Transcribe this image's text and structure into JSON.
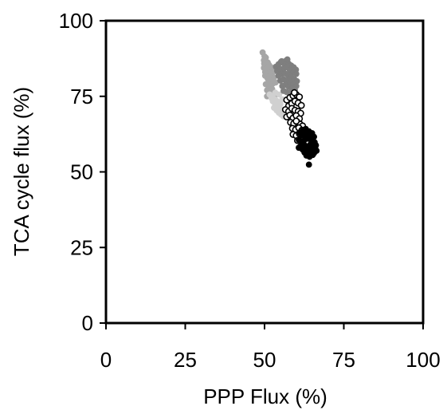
{
  "chart_data": {
    "type": "scatter",
    "title": "",
    "xlabel": "PPP Flux (%)",
    "ylabel": "TCA cycle flux (%)",
    "xlim": [
      0,
      100
    ],
    "ylim": [
      0,
      100
    ],
    "xticks": [
      0,
      25,
      50,
      75,
      100
    ],
    "yticks": [
      0,
      25,
      50,
      75,
      100
    ],
    "grid": false,
    "series": [
      {
        "color": "#a6a6a6",
        "stroke": "#a6a6a6",
        "x": [
          49.4,
          50.0,
          49.8,
          50.4,
          51.0,
          50.7,
          51.3,
          52.0,
          51.6,
          52.3,
          52.9,
          49.8,
          50.6,
          51.2,
          51.8,
          52.4,
          50.2,
          51.0,
          51.8,
          52.6,
          50.4,
          51.4,
          52.4,
          50.8,
          51.8,
          52.8,
          53.5,
          49.9,
          50.6,
          51.4,
          52.1,
          53.0,
          53.5,
          50.2,
          51.3,
          50.8
        ],
        "y": [
          89.5,
          88.2,
          86.9,
          87.8,
          86.2,
          85.0,
          84.2,
          83.5,
          82.4,
          82.0,
          81.2,
          84.4,
          83.6,
          82.8,
          81.6,
          80.6,
          81.8,
          80.8,
          79.8,
          79.2,
          79.0,
          78.4,
          77.4,
          77.0,
          76.6,
          76.0,
          75.6,
          85.8,
          86.0,
          85.4,
          84.6,
          83.2,
          79.6,
          83.0,
          81.0,
          75.0
        ]
      },
      {
        "color": "#d0d0d0",
        "stroke": "#d0d0d0",
        "x": [
          51.6,
          52.3,
          53.0,
          53.7,
          54.4,
          55.0,
          52.6,
          53.3,
          54.0,
          54.7,
          55.3,
          53.0,
          53.8,
          54.5,
          55.2,
          55.9,
          52.2,
          53.4,
          54.6,
          55.6
        ],
        "y": [
          75.6,
          74.8,
          74.2,
          73.6,
          73.0,
          72.4,
          73.4,
          72.6,
          71.8,
          71.2,
          70.6,
          71.2,
          70.4,
          69.6,
          69.0,
          68.4,
          74.4,
          76.2,
          75.6,
          74.0
        ]
      },
      {
        "color": "#7f7f7f",
        "stroke": "#7f7f7f",
        "x": [
          53.6,
          54.4,
          55.2,
          56.0,
          56.8,
          57.6,
          58.4,
          59.2,
          59.9,
          54.0,
          55.0,
          56.0,
          57.0,
          58.0,
          59.0,
          60.0,
          54.4,
          55.4,
          56.4,
          57.4,
          58.4,
          59.4,
          60.2,
          55.0,
          56.0,
          57.0,
          58.0,
          59.0,
          60.0,
          55.6,
          56.6,
          57.6,
          58.6,
          59.6,
          56.0,
          57.0,
          58.0,
          59.2,
          55.4,
          57.2
        ],
        "y": [
          84.8,
          85.6,
          86.4,
          86.0,
          86.8,
          85.8,
          85.2,
          84.6,
          83.8,
          83.4,
          84.0,
          84.2,
          84.6,
          83.6,
          83.0,
          82.4,
          81.8,
          82.4,
          82.6,
          82.0,
          81.4,
          80.6,
          80.0,
          80.2,
          80.6,
          80.2,
          79.6,
          79.0,
          78.4,
          78.4,
          78.8,
          78.2,
          77.6,
          77.0,
          76.8,
          76.4,
          76.0,
          75.6,
          86.6,
          87.2
        ]
      },
      {
        "color": "#ffffff",
        "stroke": "#000000",
        "x": [
          57.0,
          58.0,
          59.0,
          60.0,
          61.0,
          57.6,
          58.6,
          59.6,
          60.6,
          61.6,
          56.6,
          57.6,
          58.6,
          59.6,
          60.6,
          61.4,
          57.0,
          58.0,
          59.0,
          60.0,
          61.0,
          58.2,
          59.2,
          60.2,
          61.2,
          62.0,
          58.8,
          59.8,
          60.8,
          61.8,
          59.0,
          60.0,
          61.0,
          62.0,
          60.4,
          61.4,
          59.4,
          60.0
        ],
        "y": [
          73.8,
          74.6,
          75.2,
          75.6,
          74.8,
          71.8,
          72.6,
          73.4,
          72.8,
          72.0,
          70.6,
          70.0,
          71.0,
          70.4,
          70.0,
          69.4,
          68.2,
          68.8,
          67.8,
          68.6,
          67.6,
          66.4,
          66.0,
          66.6,
          65.8,
          65.2,
          64.4,
          64.0,
          64.6,
          63.8,
          62.4,
          62.0,
          62.6,
          61.8,
          60.4,
          60.8,
          76.2,
          66.8
        ]
      },
      {
        "color": "#000000",
        "stroke": "#000000",
        "x": [
          61.0,
          62.0,
          63.0,
          64.0,
          65.0,
          61.6,
          62.6,
          63.6,
          64.6,
          65.6,
          60.8,
          61.8,
          62.8,
          63.8,
          64.8,
          65.8,
          61.4,
          62.4,
          63.4,
          64.4,
          65.4,
          66.2,
          62.0,
          63.0,
          64.0,
          65.0,
          66.0,
          62.6,
          63.6,
          64.6,
          65.6,
          63.2,
          64.2,
          65.2,
          64.0,
          60.8,
          66.4
        ],
        "y": [
          63.0,
          63.6,
          64.2,
          63.4,
          62.8,
          62.0,
          62.4,
          61.8,
          62.2,
          61.6,
          60.6,
          60.0,
          60.8,
          61.0,
          60.4,
          59.8,
          58.6,
          59.2,
          58.4,
          59.0,
          58.2,
          58.8,
          57.4,
          57.0,
          57.6,
          57.2,
          57.8,
          56.4,
          56.0,
          56.6,
          56.2,
          55.4,
          55.0,
          55.6,
          52.4,
          58.0,
          57.0
        ]
      }
    ]
  }
}
